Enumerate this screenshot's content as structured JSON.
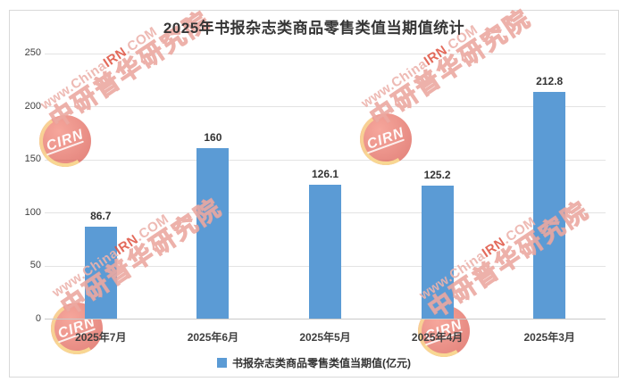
{
  "chart_data": {
    "type": "bar",
    "title": "2025年书报杂志类商品零售类值当期值统计",
    "categories": [
      "2025年7月",
      "2025年6月",
      "2025年5月",
      "2025年4月",
      "2025年3月"
    ],
    "values": [
      86.7,
      160,
      126.1,
      125.2,
      212.8
    ],
    "series_name": "书报杂志类商品零售类值当期值(亿元)",
    "unit": "亿元",
    "ylim": [
      0,
      250
    ],
    "yticks": [
      0,
      50,
      100,
      150,
      200,
      250
    ],
    "grid": true,
    "legend_position": "bottom",
    "bar_color": "#5B9BD5"
  },
  "legend": {
    "swatch_color": "#5B9BD5"
  },
  "watermark": {
    "logo_text": "CIRN",
    "url_prefix": "www.China",
    "url_highlight": "IRN",
    "url_suffix": ".COM",
    "cn_text": "中研普华研究院",
    "accent_red": "#D9453A",
    "pink": "#ECB2AC"
  },
  "colors": {
    "title": "#363636",
    "axis_text": "#404040",
    "gridline": "#E3E3E3",
    "border": "#D9D9D9"
  }
}
